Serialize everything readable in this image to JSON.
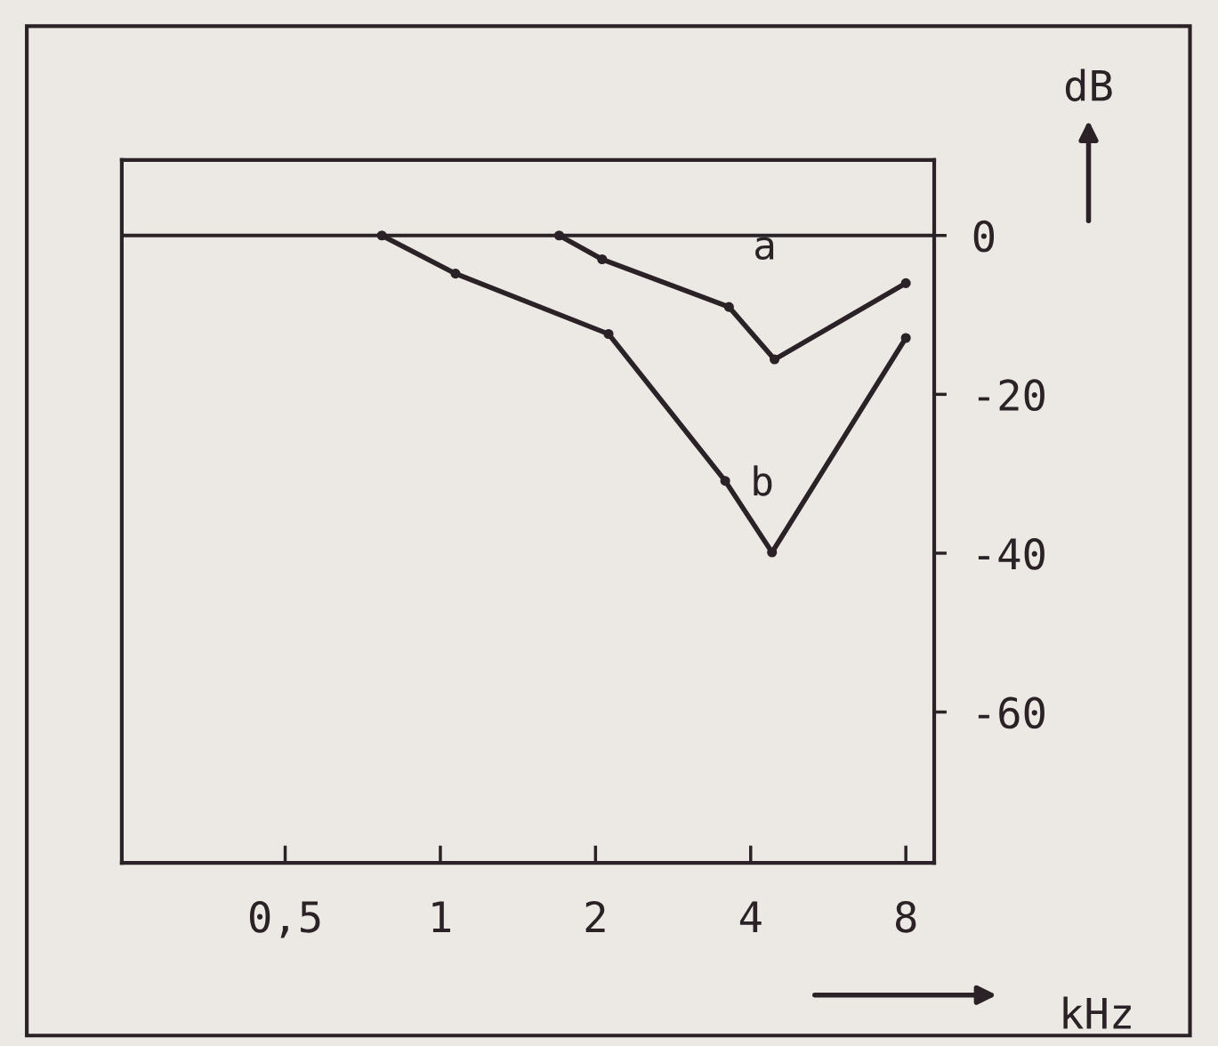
{
  "chart_data": {
    "type": "line",
    "xlabel": "kHz",
    "ylabel": "dB",
    "log": "x",
    "xlim": [
      0.241,
      9.08
    ],
    "xticks": [
      {
        "value": 0.5,
        "label": "0,5"
      },
      1,
      2,
      4,
      8
    ],
    "ylim": [
      -79,
      9.5
    ],
    "yticks": [
      0,
      {
        "value": -20,
        "label": "-20"
      },
      {
        "value": -40,
        "label": "-40"
      },
      {
        "value": -60,
        "label": "-60"
      }
    ],
    "grid": false,
    "legend": false,
    "marker": "circle",
    "line_style": "solid",
    "ref_lines": [
      {
        "axis": "y",
        "value": 0,
        "color": "#2a2226"
      }
    ],
    "series": [
      {
        "name": "a",
        "color": "#2a2226",
        "x": [
          1.7,
          2.06,
          3.63,
          4.45,
          8
        ],
        "values": [
          0,
          -3,
          -9,
          -15.6,
          -6
        ]
      },
      {
        "name": "b",
        "color": "#2a2226",
        "x": [
          0.77,
          1.07,
          2.12,
          3.57,
          4.4,
          8
        ],
        "values": [
          0,
          -4.8,
          -12.4,
          -30.9,
          -39.9,
          -12.9
        ]
      }
    ]
  }
}
